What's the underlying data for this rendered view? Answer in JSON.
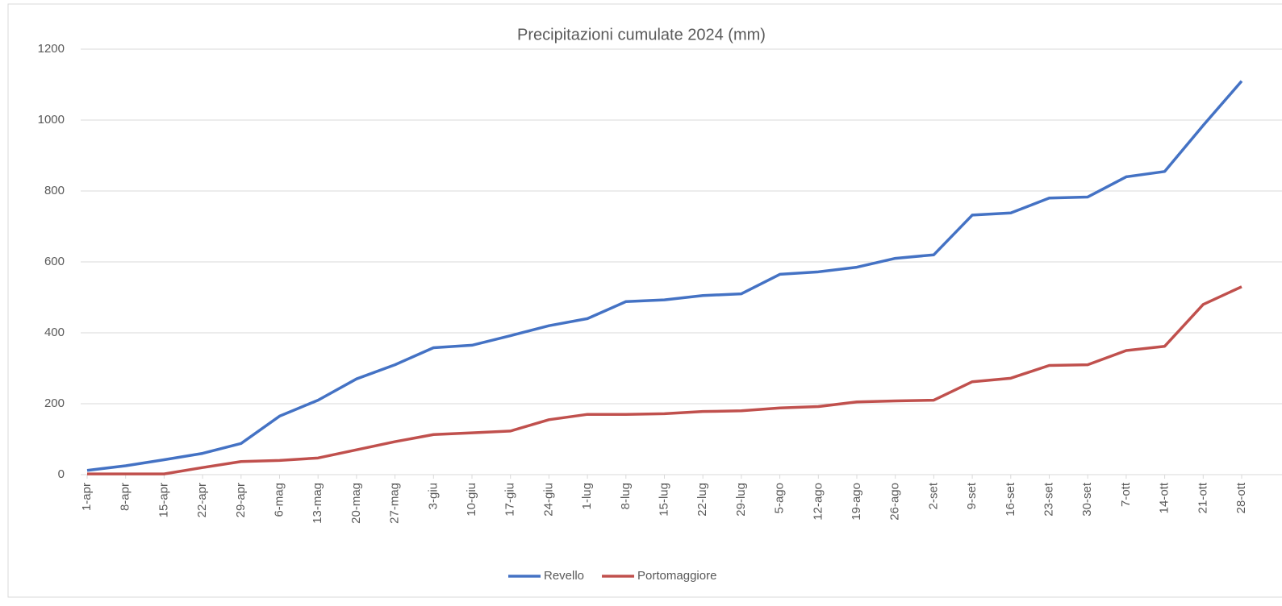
{
  "chart_data": {
    "type": "line",
    "title": "Precipitazioni cumulate 2024 (mm)",
    "categories": [
      "1-apr",
      "8-apr",
      "15-apr",
      "22-apr",
      "29-apr",
      "6-mag",
      "13-mag",
      "20-mag",
      "27-mag",
      "3-giu",
      "10-giu",
      "17-giu",
      "24-giu",
      "1-lug",
      "8-lug",
      "15-lug",
      "22-lug",
      "29-lug",
      "5-ago",
      "12-ago",
      "19-ago",
      "26-ago",
      "2-set",
      "9-set",
      "16-set",
      "23-set",
      "30-set",
      "7-ott",
      "14-ott",
      "21-ott",
      "28-ott"
    ],
    "series": [
      {
        "name": "Revello",
        "color": "#4472c4",
        "values": [
          12,
          25,
          42,
          60,
          88,
          165,
          210,
          270,
          310,
          358,
          365,
          392,
          420,
          440,
          488,
          493,
          505,
          510,
          565,
          572,
          585,
          610,
          620,
          732,
          738,
          780,
          783,
          840,
          855,
          985,
          1110
        ]
      },
      {
        "name": "Portomaggiore",
        "color": "#c0504d",
        "values": [
          2,
          2,
          2,
          20,
          37,
          40,
          47,
          70,
          93,
          113,
          118,
          123,
          155,
          170,
          170,
          172,
          178,
          180,
          188,
          192,
          205,
          208,
          210,
          262,
          272,
          308,
          310,
          350,
          362,
          480,
          530
        ]
      }
    ],
    "ylim": [
      0,
      1200
    ],
    "yticks": [
      0,
      200,
      400,
      600,
      800,
      1000,
      1200
    ],
    "grid": true,
    "legend": "bottom"
  }
}
